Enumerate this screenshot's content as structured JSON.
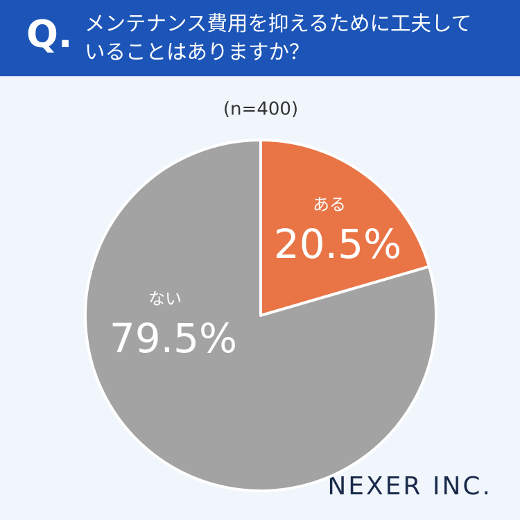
{
  "question_marker": "Q.",
  "title": "メンテナンス費用を抑えるために工夫していることはありますか？",
  "brand": "NEXER INC.",
  "chart_data": {
    "type": "pie",
    "subtitle": "(n=400)",
    "categories": [
      "ある",
      "ない"
    ],
    "values": [
      20.5,
      79.5
    ],
    "value_labels": [
      "20.5%",
      "79.5%"
    ],
    "colors": [
      "#e97546",
      "#a3a3a3"
    ]
  }
}
